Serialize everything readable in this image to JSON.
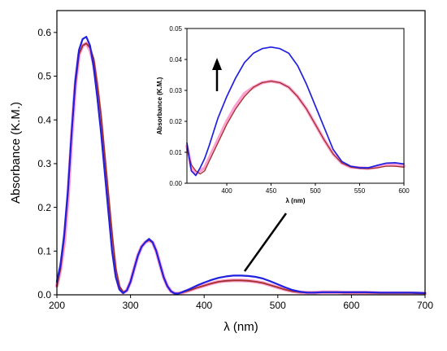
{
  "chart_data": [
    {
      "type": "line",
      "xlabel": "λ (nm)",
      "ylabel": "Absorbance (K.M.)",
      "xlim": [
        200,
        700
      ],
      "ylim": [
        0,
        0.65
      ],
      "x_ticks": [
        200,
        300,
        400,
        500,
        600,
        700
      ],
      "y_ticks": [
        0.0,
        0.1,
        0.2,
        0.3,
        0.4,
        0.5,
        0.6
      ],
      "x_tick_labels": [
        "200",
        "300",
        "400",
        "500",
        "600",
        "700"
      ],
      "y_tick_labels": [
        "0.0",
        "0.1",
        "0.2",
        "0.3",
        "0.4",
        "0.5",
        "0.6"
      ],
      "grid": false,
      "legend": "none",
      "series": [
        {
          "color": "#ff9fd0",
          "x": [
            200,
            205,
            210,
            215,
            220,
            225,
            230,
            235,
            240,
            245,
            250,
            255,
            260,
            265,
            270,
            275,
            280,
            285,
            290,
            295,
            300,
            305,
            310,
            315,
            320,
            325,
            330,
            335,
            340,
            345,
            350,
            355,
            360,
            365,
            370,
            380,
            390,
            400,
            410,
            420,
            430,
            440,
            450,
            460,
            470,
            480,
            490,
            500,
            510,
            520,
            530,
            540,
            550,
            560,
            570,
            580,
            590,
            600,
            620,
            640,
            660,
            680,
            700
          ],
          "y": [
            0.02,
            0.06,
            0.12,
            0.22,
            0.36,
            0.48,
            0.55,
            0.57,
            0.575,
            0.56,
            0.53,
            0.47,
            0.39,
            0.3,
            0.21,
            0.12,
            0.05,
            0.015,
            0.005,
            0.01,
            0.03,
            0.06,
            0.09,
            0.11,
            0.12,
            0.125,
            0.12,
            0.1,
            0.07,
            0.04,
            0.02,
            0.008,
            0.003,
            0.003,
            0.005,
            0.01,
            0.016,
            0.021,
            0.026,
            0.03,
            0.032,
            0.033,
            0.033,
            0.032,
            0.03,
            0.027,
            0.022,
            0.017,
            0.012,
            0.008,
            0.006,
            0.005,
            0.005,
            0.006,
            0.006,
            0.006,
            0.005,
            0.005,
            0.005,
            0.004,
            0.004,
            0.004,
            0.003
          ]
        },
        {
          "color": "#a0302a",
          "x": [
            200,
            205,
            210,
            215,
            220,
            225,
            230,
            235,
            240,
            245,
            250,
            255,
            260,
            265,
            270,
            275,
            280,
            285,
            290,
            295,
            300,
            305,
            310,
            315,
            320,
            325,
            330,
            335,
            340,
            345,
            350,
            355,
            360,
            365,
            370,
            380,
            390,
            400,
            410,
            420,
            430,
            440,
            450,
            460,
            470,
            480,
            490,
            500,
            510,
            520,
            530,
            540,
            550,
            560,
            570,
            580,
            590,
            600,
            620,
            640,
            660,
            680,
            700
          ],
          "y": [
            0.02,
            0.06,
            0.13,
            0.23,
            0.37,
            0.48,
            0.55,
            0.57,
            0.575,
            0.565,
            0.54,
            0.48,
            0.41,
            0.32,
            0.23,
            0.14,
            0.06,
            0.02,
            0.006,
            0.01,
            0.03,
            0.06,
            0.09,
            0.11,
            0.12,
            0.125,
            0.12,
            0.1,
            0.07,
            0.04,
            0.02,
            0.008,
            0.003,
            0.003,
            0.005,
            0.01,
            0.016,
            0.021,
            0.026,
            0.03,
            0.032,
            0.033,
            0.033,
            0.032,
            0.03,
            0.027,
            0.022,
            0.017,
            0.012,
            0.008,
            0.006,
            0.005,
            0.005,
            0.006,
            0.006,
            0.006,
            0.005,
            0.005,
            0.005,
            0.004,
            0.004,
            0.004,
            0.003
          ]
        },
        {
          "color": "#2020e0",
          "x": [
            200,
            205,
            210,
            215,
            220,
            225,
            230,
            235,
            240,
            245,
            250,
            255,
            260,
            265,
            270,
            275,
            280,
            285,
            290,
            295,
            300,
            305,
            310,
            315,
            320,
            325,
            330,
            335,
            340,
            345,
            350,
            355,
            360,
            365,
            370,
            380,
            390,
            400,
            410,
            420,
            430,
            440,
            450,
            460,
            470,
            480,
            490,
            500,
            510,
            520,
            530,
            540,
            550,
            560,
            570,
            580,
            590,
            600,
            620,
            640,
            660,
            680,
            700
          ],
          "y": [
            0.03,
            0.07,
            0.14,
            0.24,
            0.37,
            0.49,
            0.56,
            0.585,
            0.59,
            0.57,
            0.52,
            0.45,
            0.37,
            0.28,
            0.19,
            0.1,
            0.04,
            0.012,
            0.004,
            0.01,
            0.03,
            0.06,
            0.09,
            0.11,
            0.12,
            0.128,
            0.12,
            0.1,
            0.07,
            0.04,
            0.02,
            0.008,
            0.003,
            0.003,
            0.006,
            0.013,
            0.021,
            0.028,
            0.034,
            0.039,
            0.042,
            0.044,
            0.044,
            0.043,
            0.041,
            0.037,
            0.031,
            0.024,
            0.017,
            0.011,
            0.007,
            0.005,
            0.005,
            0.006,
            0.006,
            0.006,
            0.006,
            0.006,
            0.006,
            0.005,
            0.005,
            0.005,
            0.004
          ]
        }
      ]
    },
    {
      "type": "line",
      "xlabel": "λ (nm)",
      "ylabel": "Absorbance (K.M.)",
      "xlim": [
        355,
        600
      ],
      "ylim": [
        0,
        0.05
      ],
      "x_ticks": [
        400,
        450,
        500,
        550,
        600
      ],
      "y_ticks": [
        0.0,
        0.01,
        0.02,
        0.03,
        0.04,
        0.05
      ],
      "x_tick_labels": [
        "400",
        "450",
        "500",
        "550",
        "600"
      ],
      "y_tick_labels": [
        "0.00",
        "0.01",
        "0.02",
        "0.03",
        "0.04",
        "0.05"
      ],
      "grid": false,
      "legend": "none",
      "annotations": [
        "arrow-up"
      ],
      "series": [
        {
          "color": "#ff9fd0",
          "x": [
            355,
            360,
            365,
            370,
            375,
            380,
            390,
            400,
            410,
            420,
            430,
            440,
            450,
            460,
            470,
            480,
            490,
            500,
            510,
            520,
            530,
            540,
            550,
            560,
            570,
            580,
            590,
            600
          ],
          "y": [
            0.012,
            0.005,
            0.003,
            0.004,
            0.005,
            0.008,
            0.014,
            0.02,
            0.025,
            0.029,
            0.031,
            0.0325,
            0.033,
            0.0325,
            0.031,
            0.028,
            0.024,
            0.019,
            0.014,
            0.0095,
            0.0065,
            0.0052,
            0.005,
            0.0048,
            0.0052,
            0.006,
            0.0058,
            0.0055
          ]
        },
        {
          "color": "#a0302a",
          "x": [
            355,
            360,
            365,
            370,
            375,
            380,
            390,
            400,
            410,
            420,
            430,
            440,
            450,
            460,
            470,
            480,
            490,
            500,
            510,
            520,
            530,
            540,
            550,
            560,
            570,
            580,
            590,
            600
          ],
          "y": [
            0.011,
            0.006,
            0.004,
            0.003,
            0.004,
            0.007,
            0.013,
            0.019,
            0.024,
            0.028,
            0.031,
            0.0325,
            0.033,
            0.0325,
            0.031,
            0.028,
            0.024,
            0.019,
            0.014,
            0.0095,
            0.0065,
            0.0052,
            0.0048,
            0.0047,
            0.005,
            0.0055,
            0.0055,
            0.0052
          ]
        },
        {
          "color": "#2020e0",
          "x": [
            355,
            360,
            365,
            370,
            375,
            380,
            390,
            400,
            410,
            420,
            430,
            440,
            450,
            460,
            470,
            480,
            490,
            500,
            510,
            520,
            530,
            540,
            550,
            560,
            570,
            580,
            590,
            600
          ],
          "y": [
            0.013,
            0.004,
            0.0025,
            0.005,
            0.008,
            0.012,
            0.021,
            0.028,
            0.034,
            0.039,
            0.042,
            0.0435,
            0.044,
            0.0435,
            0.042,
            0.038,
            0.032,
            0.025,
            0.018,
            0.011,
            0.007,
            0.0055,
            0.005,
            0.005,
            0.0058,
            0.0065,
            0.0066,
            0.0062
          ]
        }
      ]
    }
  ]
}
